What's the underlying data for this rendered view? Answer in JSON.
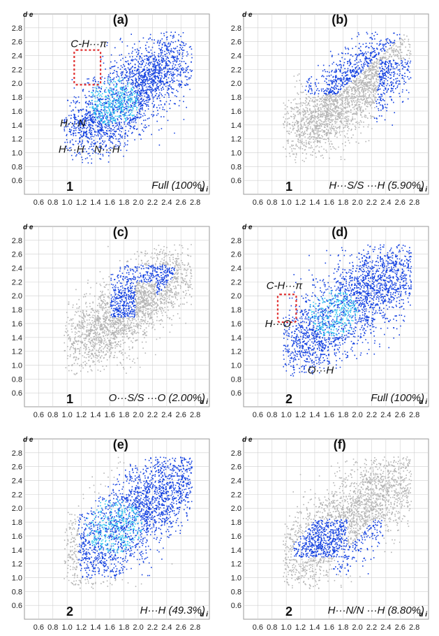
{
  "figure": {
    "ytick_labels": [
      "2.8",
      "2.6",
      "2.4",
      "2.2",
      "2.0",
      "1.8",
      "1.6",
      "1.4",
      "1.2",
      "1.0",
      "0.8",
      "0.6"
    ],
    "xtick_labels": [
      "0.6",
      "0.8",
      "1.0",
      "1.2",
      "1.4",
      "1.6",
      "1.8",
      "2.0",
      "2.2",
      "2.4",
      "2.6",
      "2.8"
    ]
  },
  "colors": {
    "highlight": "#1240e0",
    "highlight_core": "#33c8f0",
    "background_points": "#b4b4b4",
    "grid": "#cfcfcf",
    "box": "#e03030"
  },
  "chart_data": [
    {
      "type": "scatter",
      "panel": "(a)",
      "compound": "1",
      "caption": "Full (100%)",
      "xlabel": "d i",
      "ylabel": "d e",
      "xlim": [
        0.4,
        3.0
      ],
      "ylim": [
        0.4,
        3.0
      ],
      "highlight": "full",
      "annotations": [
        {
          "text": "C-H···π",
          "x": 1.05,
          "y": 2.52
        },
        {
          "text": "H···N",
          "x": 0.9,
          "y": 1.38
        },
        {
          "text": "H···H",
          "x": 0.88,
          "y": 1.0
        },
        {
          "text": "N···H",
          "x": 1.38,
          "y": 1.0
        }
      ],
      "dashed_box": {
        "x": [
          1.1,
          1.47
        ],
        "y": [
          1.98,
          2.48
        ]
      }
    },
    {
      "type": "scatter",
      "panel": "(b)",
      "compound": "1",
      "caption": "H···S/S ···H (5.90%)",
      "xlabel": "d i",
      "ylabel": "d e",
      "xlim": [
        0.4,
        3.0
      ],
      "ylim": [
        0.4,
        3.0
      ],
      "highlight": "H···S/S···H",
      "annotations": []
    },
    {
      "type": "scatter",
      "panel": "(c)",
      "compound": "1",
      "caption": "O···S/S ···O (2.00%)",
      "xlabel": "d i",
      "ylabel": "d e",
      "xlim": [
        0.4,
        3.0
      ],
      "ylim": [
        0.4,
        3.0
      ],
      "highlight": "O···S/S···O",
      "annotations": []
    },
    {
      "type": "scatter",
      "panel": "(d)",
      "compound": "2",
      "caption": "Full (100%)",
      "xlabel": "d i",
      "ylabel": "d e",
      "xlim": [
        0.4,
        3.0
      ],
      "ylim": [
        0.4,
        3.0
      ],
      "highlight": "full",
      "annotations": [
        {
          "text": "C-H···π",
          "x": 0.72,
          "y": 2.1
        },
        {
          "text": "H···O",
          "x": 0.7,
          "y": 1.55
        },
        {
          "text": "O···H",
          "x": 1.3,
          "y": 0.88
        }
      ],
      "dashed_box": {
        "x": [
          0.88,
          1.14
        ],
        "y": [
          1.62,
          2.02
        ]
      }
    },
    {
      "type": "scatter",
      "panel": "(e)",
      "compound": "2",
      "caption": "H···H (49.3%)",
      "xlabel": "d i",
      "ylabel": "d e",
      "xlim": [
        0.4,
        3.0
      ],
      "ylim": [
        0.4,
        3.0
      ],
      "highlight": "H···H",
      "annotations": []
    },
    {
      "type": "scatter",
      "panel": "(f)",
      "compound": "2",
      "caption": "H···N/N ···H (8.80%)",
      "xlabel": "d i",
      "ylabel": "d e",
      "xlim": [
        0.4,
        3.0
      ],
      "ylim": [
        0.4,
        3.0
      ],
      "highlight": "H···N/N···H",
      "annotations": []
    }
  ]
}
